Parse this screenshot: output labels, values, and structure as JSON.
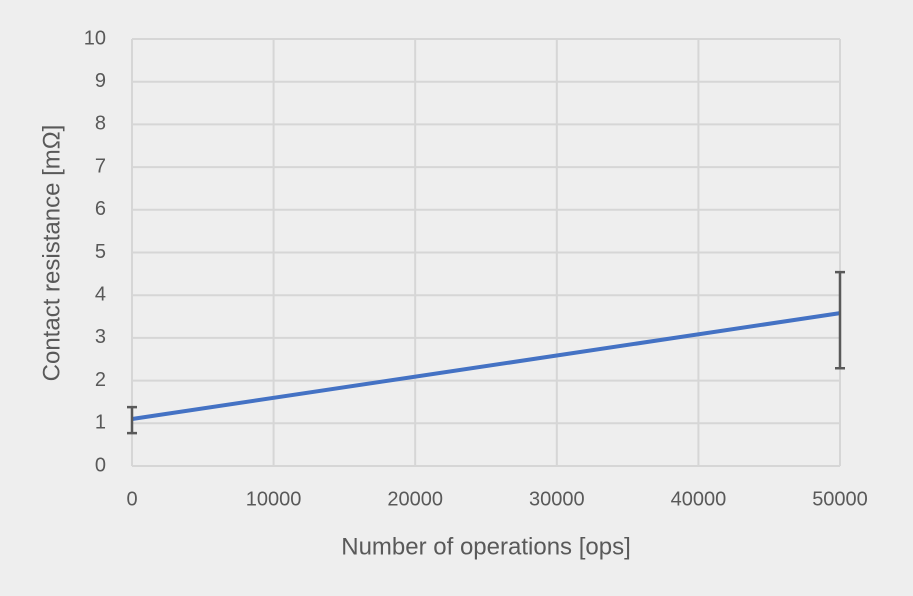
{
  "chart_data": {
    "type": "line",
    "x_label": "Number of operations [ops]",
    "y_label": "Contact resistance [mΩ]",
    "x": [
      0,
      50000
    ],
    "series": [
      {
        "color": "#4472c4",
        "values": [
          1.1,
          3.58
        ],
        "error_plus": [
          0.28,
          0.96
        ],
        "error_minus": [
          0.33,
          1.29
        ]
      }
    ],
    "xlim": [
      0,
      50000
    ],
    "xticks": [
      0,
      10000,
      20000,
      30000,
      40000,
      50000
    ],
    "ylim": [
      0,
      10
    ],
    "yticks": [
      0,
      1,
      2,
      3,
      4,
      5,
      6,
      7,
      8,
      9,
      10
    ],
    "grid": true,
    "error_color": "#595959"
  }
}
